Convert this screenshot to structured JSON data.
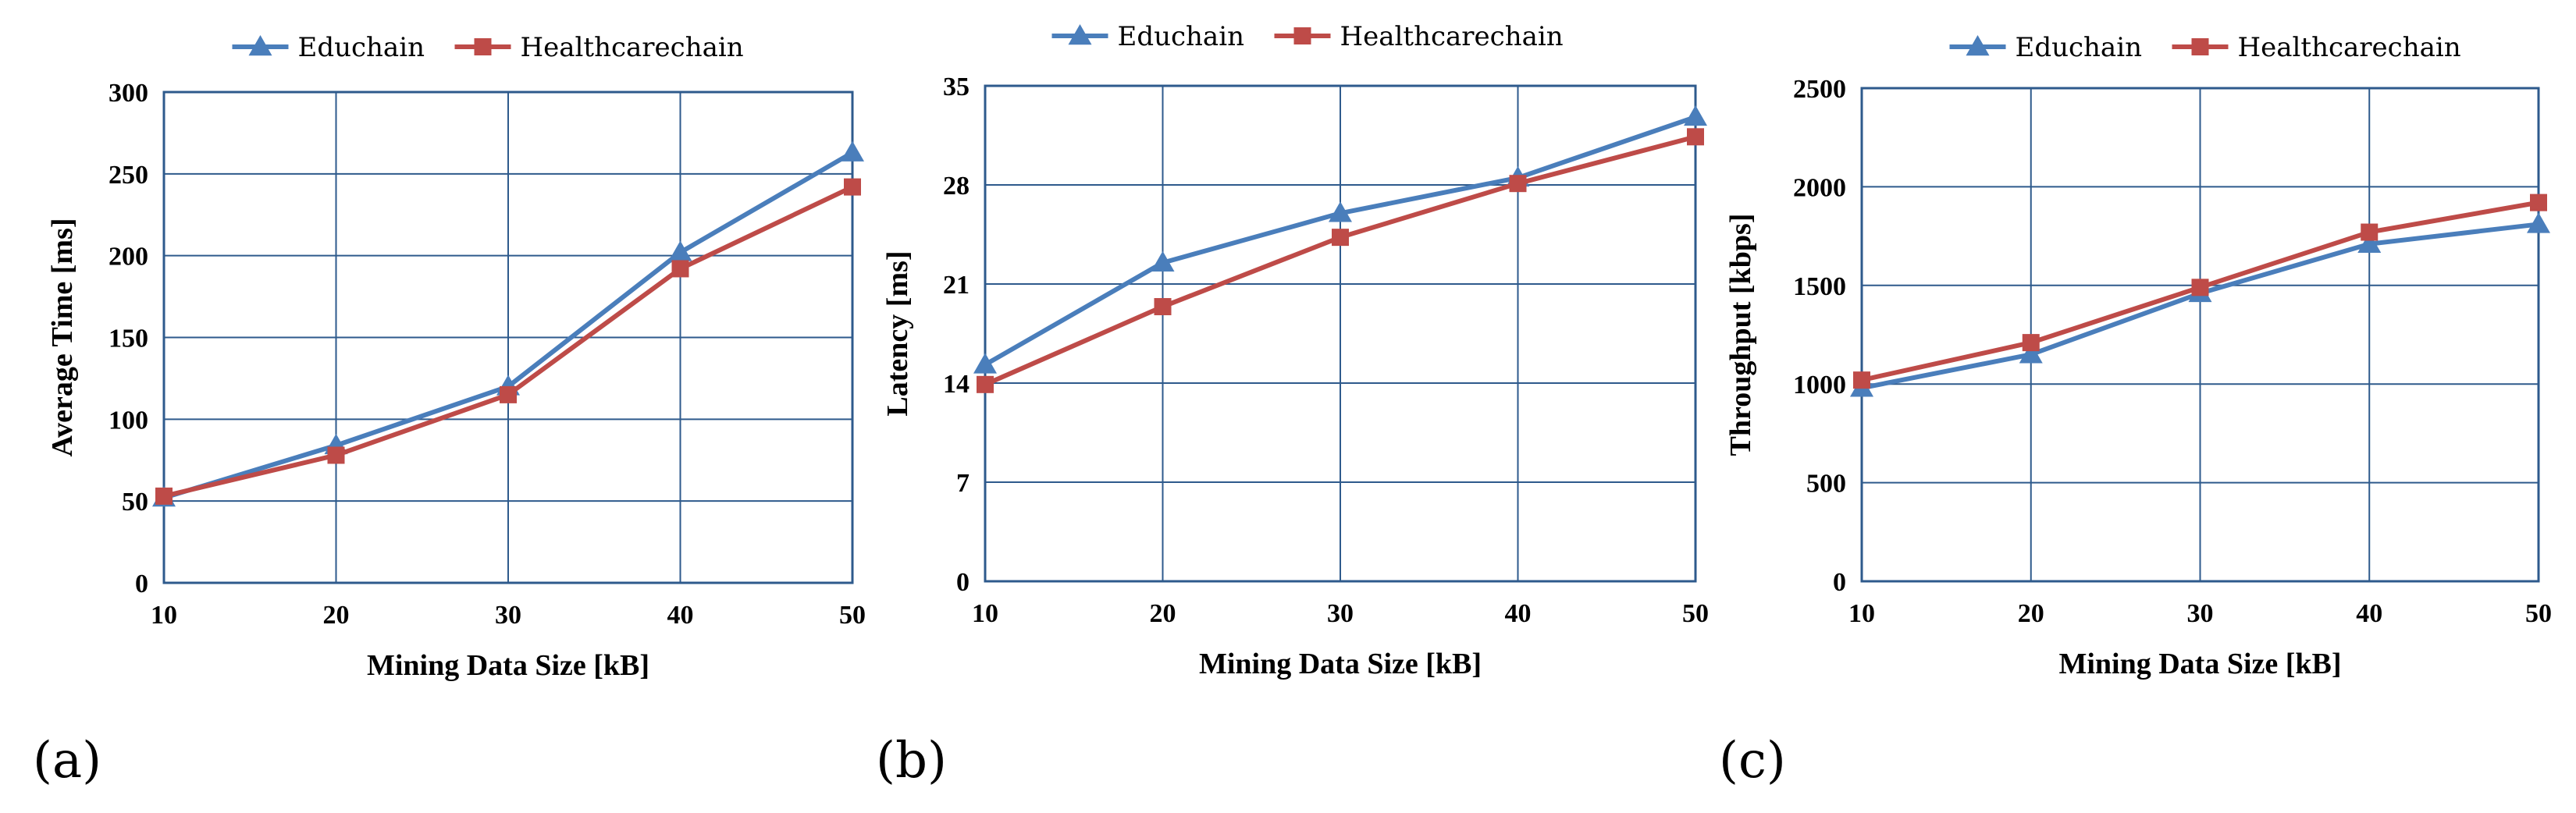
{
  "chart_data": [
    {
      "type": "line",
      "panel_label": "(a)",
      "xlabel": "Mining Data Size [kB]",
      "ylabel": "Average Time [ms]",
      "x": [
        10,
        20,
        30,
        40,
        50
      ],
      "xlim": [
        10,
        50
      ],
      "ylim": [
        0,
        300
      ],
      "xticks": [
        10,
        20,
        30,
        40,
        50
      ],
      "yticks": [
        0,
        50,
        100,
        150,
        200,
        250,
        300
      ],
      "grid": true,
      "legend_position": "top",
      "series": [
        {
          "name": "Educhain",
          "color": "#4a7ebb",
          "marker": "triangle",
          "values": [
            52,
            84,
            120,
            202,
            263
          ]
        },
        {
          "name": "Healthcarechain",
          "color": "#be4b48",
          "marker": "square",
          "values": [
            53,
            78,
            115,
            192,
            242
          ]
        }
      ]
    },
    {
      "type": "line",
      "panel_label": "(b)",
      "xlabel": "Mining Data Size [kB]",
      "ylabel": "Latency [ms]",
      "x": [
        10,
        20,
        30,
        40,
        50
      ],
      "xlim": [
        10,
        50
      ],
      "ylim": [
        0,
        35
      ],
      "xticks": [
        10,
        20,
        30,
        40,
        50
      ],
      "yticks": [
        0,
        7,
        14,
        21,
        28,
        35
      ],
      "grid": true,
      "legend_position": "top",
      "series": [
        {
          "name": "Educhain",
          "color": "#4a7ebb",
          "marker": "triangle",
          "values": [
            15.3,
            22.5,
            26,
            28.5,
            32.8
          ]
        },
        {
          "name": "Healthcarechain",
          "color": "#be4b48",
          "marker": "square",
          "values": [
            13.9,
            19.4,
            24.3,
            28.1,
            31.4
          ]
        }
      ]
    },
    {
      "type": "line",
      "panel_label": "(c)",
      "xlabel": "Mining Data Size [kB]",
      "ylabel": "Throughput [kbps]",
      "x": [
        10,
        20,
        30,
        40,
        50
      ],
      "xlim": [
        10,
        50
      ],
      "ylim": [
        0,
        2500
      ],
      "xticks": [
        10,
        20,
        30,
        40,
        50
      ],
      "yticks": [
        0,
        500,
        1000,
        1500,
        2000,
        2500
      ],
      "grid": true,
      "legend_position": "top",
      "series": [
        {
          "name": "Educhain",
          "color": "#4a7ebb",
          "marker": "triangle",
          "values": [
            980,
            1150,
            1460,
            1710,
            1810
          ]
        },
        {
          "name": "Healthcarechain",
          "color": "#be4b48",
          "marker": "square",
          "values": [
            1020,
            1210,
            1490,
            1770,
            1920
          ]
        }
      ]
    }
  ]
}
